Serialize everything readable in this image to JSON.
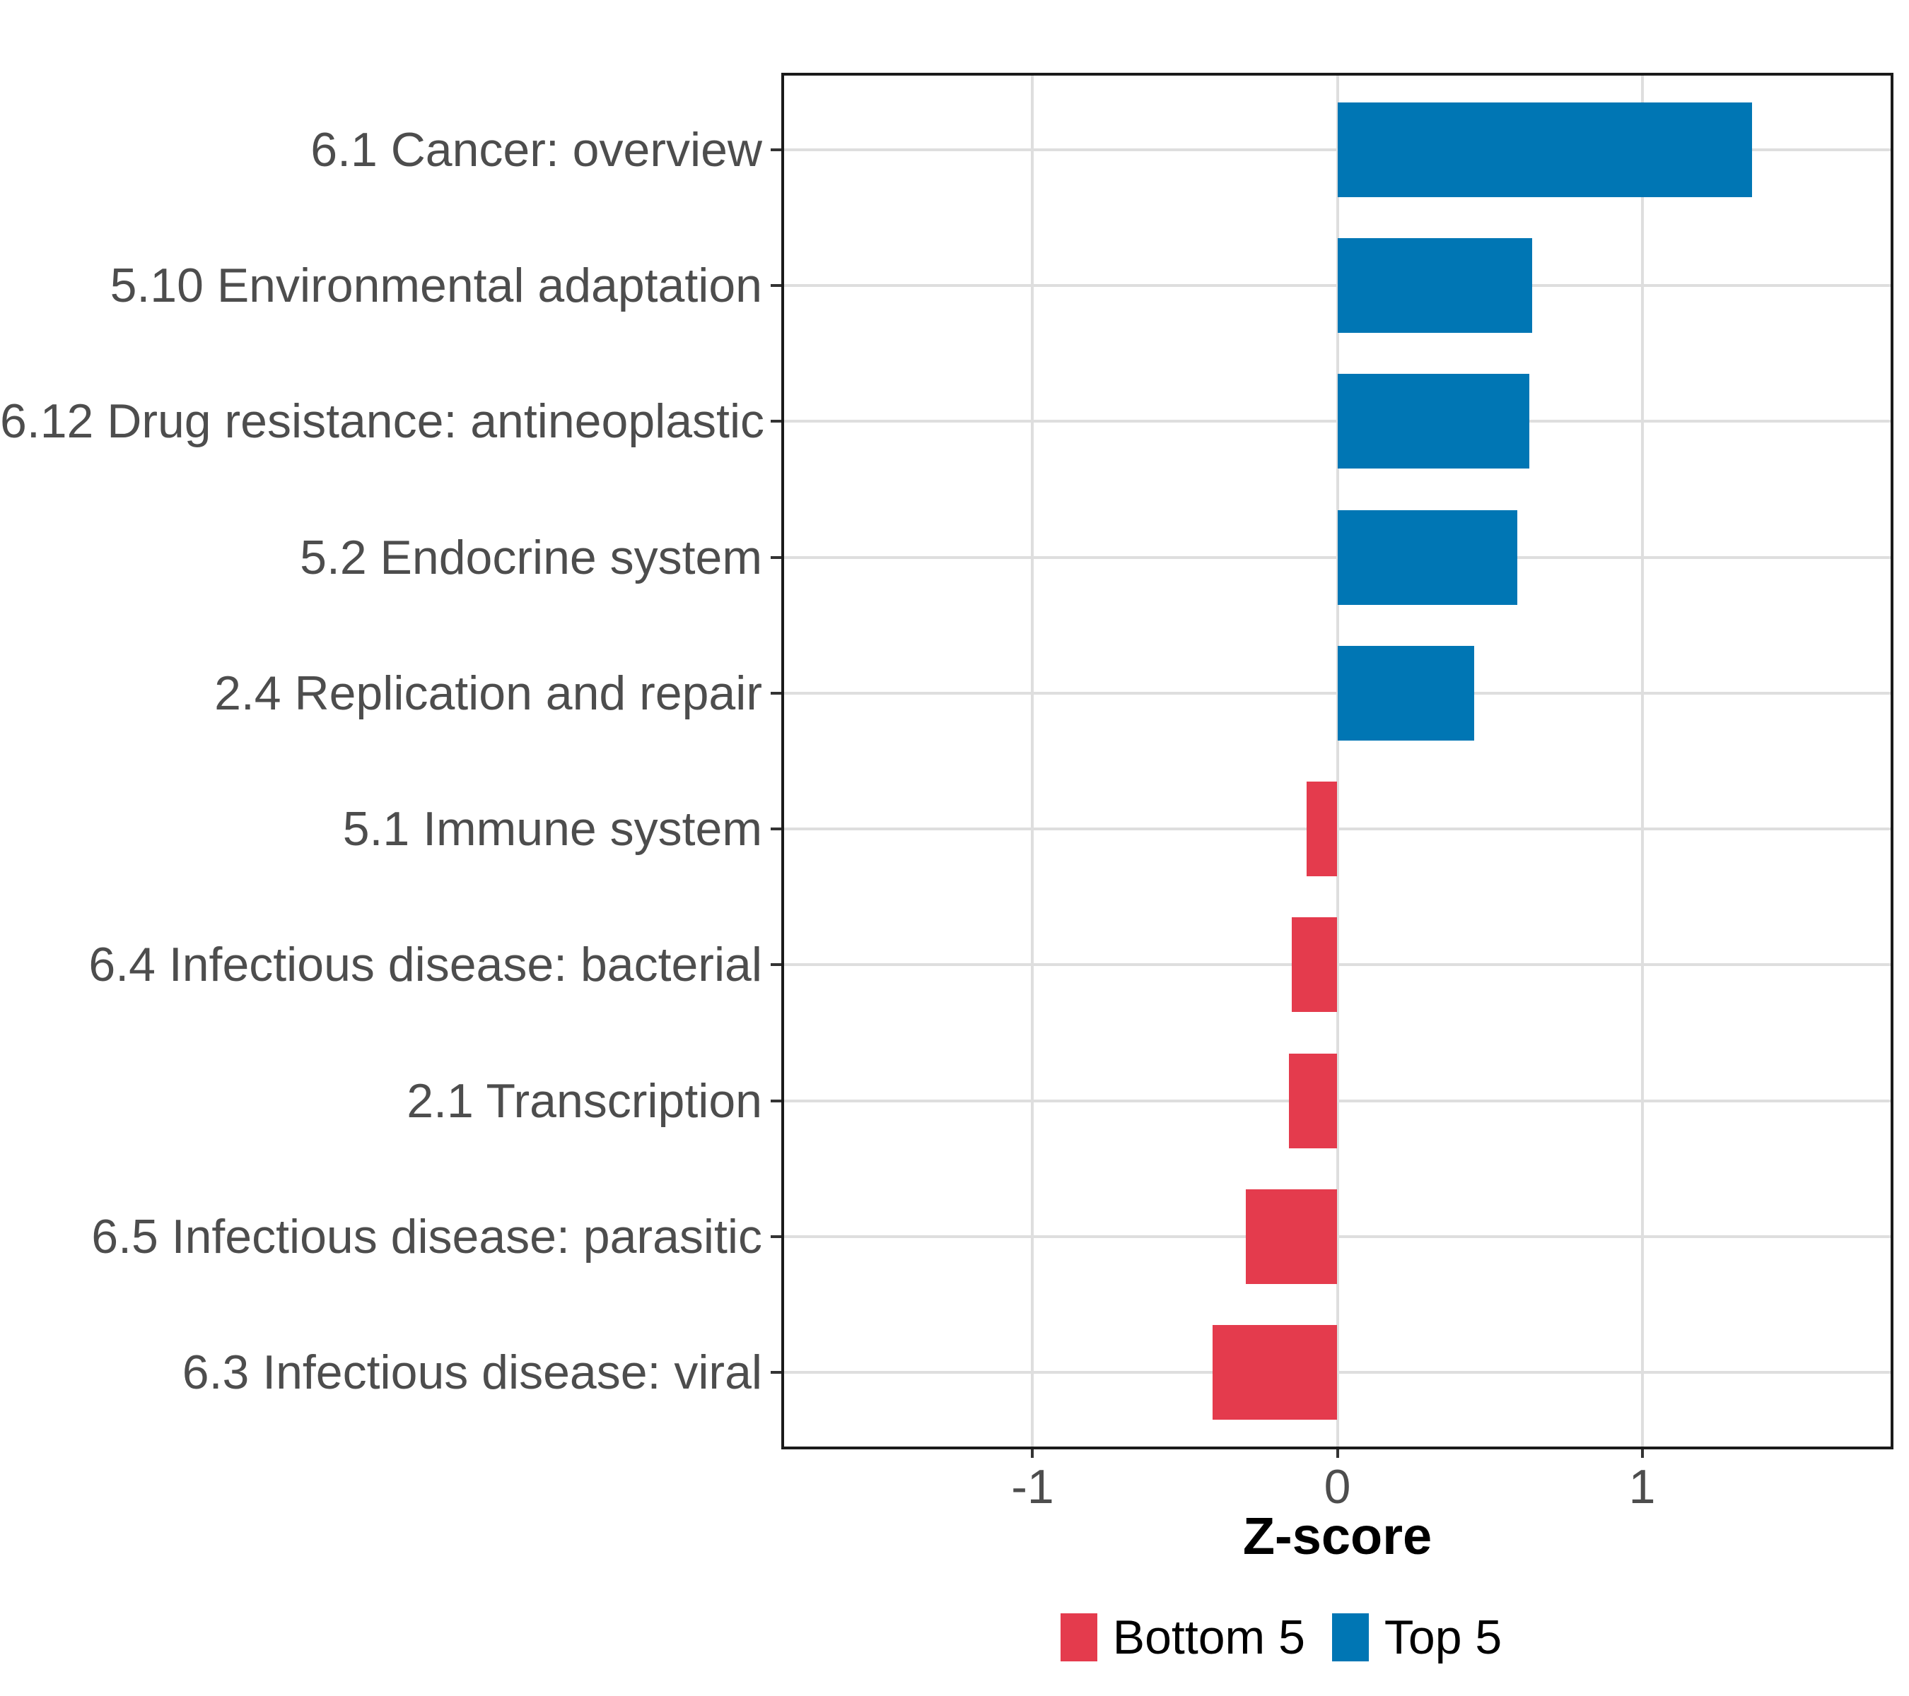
{
  "chart_data": {
    "type": "bar",
    "orientation": "horizontal",
    "title": "",
    "xlabel": "Z-score",
    "ylabel": "",
    "xlim": [
      -1.82,
      1.82
    ],
    "xticks": [
      -1,
      0,
      1
    ],
    "xtick_labels": [
      "-1",
      "0",
      "1"
    ],
    "grid": "major-only",
    "panel_border": true,
    "categories": [
      "6.1 Cancer: overview",
      "5.10 Environmental adaptation",
      "6.12 Drug resistance: antineoplastic",
      "5.2 Endocrine system",
      "2.4 Replication and repair",
      "5.1 Immune system",
      "6.4 Infectious disease: bacterial",
      "2.1 Transcription",
      "6.5 Infectious disease: parasitic",
      "6.3 Infectious disease: viral"
    ],
    "values": [
      1.36,
      0.64,
      0.63,
      0.59,
      0.45,
      -0.1,
      -0.15,
      -0.16,
      -0.3,
      -0.41
    ],
    "groups": [
      "Top 5",
      "Top 5",
      "Top 5",
      "Top 5",
      "Top 5",
      "Bottom 5",
      "Bottom 5",
      "Bottom 5",
      "Bottom 5",
      "Bottom 5"
    ],
    "legend_position": "bottom",
    "legend": [
      {
        "label": "Bottom 5",
        "color": "#e43b4d"
      },
      {
        "label": "Top 5",
        "color": "#0076b4"
      }
    ],
    "colors": {
      "Top 5": "#0076b4",
      "Bottom 5": "#e43b4d",
      "gridline": "#dedede",
      "panel_border": "#1a1a1a",
      "tick": "#333333",
      "axis_text": "#4d4d4d",
      "axis_title": "#000000"
    }
  }
}
